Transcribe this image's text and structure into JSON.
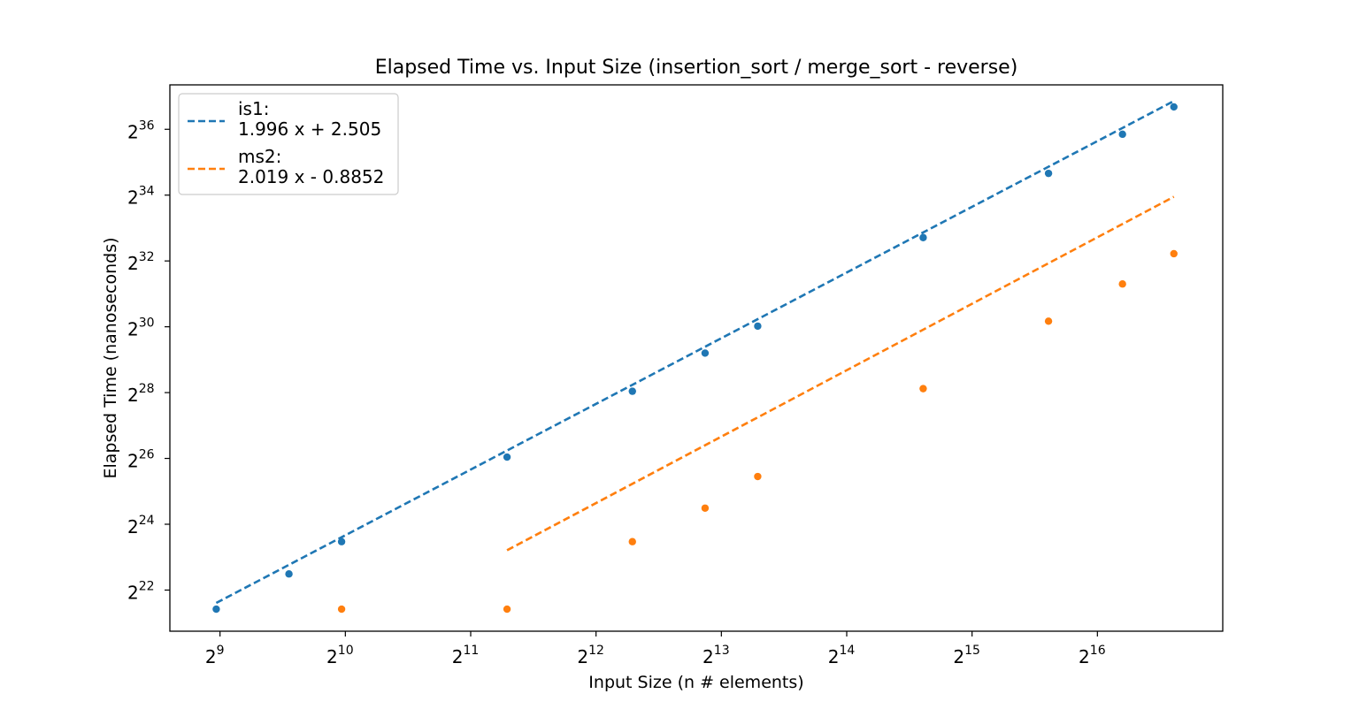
{
  "chart_data": {
    "type": "scatter",
    "title": "Elapsed Time vs. Input Size (insertion_sort / merge_sort - reverse)",
    "xlabel": "Input Size (n # elements)",
    "ylabel": "Elapsed Time (nanoseconds)",
    "x_scale": "log2",
    "y_scale": "log2",
    "xlim_log2": [
      8.6,
      17.0
    ],
    "ylim_log2": [
      20.75,
      37.35
    ],
    "x_ticks": [
      {
        "base": "2",
        "exp": "9",
        "log2": 9
      },
      {
        "base": "2",
        "exp": "10",
        "log2": 10
      },
      {
        "base": "2",
        "exp": "11",
        "log2": 11
      },
      {
        "base": "2",
        "exp": "12",
        "log2": 12
      },
      {
        "base": "2",
        "exp": "13",
        "log2": 13
      },
      {
        "base": "2",
        "exp": "14",
        "log2": 14
      },
      {
        "base": "2",
        "exp": "15",
        "log2": 15
      },
      {
        "base": "2",
        "exp": "16",
        "log2": 16
      }
    ],
    "y_ticks": [
      {
        "base": "2",
        "exp": "22",
        "log2": 22
      },
      {
        "base": "2",
        "exp": "24",
        "log2": 24
      },
      {
        "base": "2",
        "exp": "26",
        "log2": 26
      },
      {
        "base": "2",
        "exp": "28",
        "log2": 28
      },
      {
        "base": "2",
        "exp": "30",
        "log2": 30
      },
      {
        "base": "2",
        "exp": "32",
        "log2": 32
      },
      {
        "base": "2",
        "exp": "34",
        "log2": 34
      },
      {
        "base": "2",
        "exp": "36",
        "log2": 36
      }
    ],
    "grid": false,
    "legend_position": "top-left",
    "series": [
      {
        "name": "is1",
        "fit_label": "1.996 x + 2.505",
        "color": "#1f77b4",
        "fit": {
          "slope": 1.996,
          "intercept": 2.505
        },
        "points_log2": [
          [
            8.97,
            21.42
          ],
          [
            9.55,
            22.49
          ],
          [
            9.97,
            23.47
          ],
          [
            11.29,
            26.04
          ],
          [
            12.29,
            28.04
          ],
          [
            12.87,
            29.2
          ],
          [
            13.29,
            30.02
          ],
          [
            14.61,
            32.71
          ],
          [
            15.61,
            34.66
          ],
          [
            16.2,
            35.85
          ],
          [
            16.61,
            36.68
          ]
        ]
      },
      {
        "name": "ms2",
        "fit_label": "2.019 x - 0.8852",
        "color": "#ff7f0e",
        "fit": {
          "slope": 2.019,
          "intercept": -0.8852
        },
        "points_log2": [
          [
            9.97,
            21.42
          ],
          [
            11.29,
            21.42
          ],
          [
            12.29,
            23.47
          ],
          [
            12.87,
            24.49
          ],
          [
            13.29,
            25.45
          ],
          [
            14.61,
            28.12
          ],
          [
            15.61,
            30.17
          ],
          [
            16.2,
            31.3
          ],
          [
            16.61,
            32.22
          ]
        ]
      }
    ]
  }
}
